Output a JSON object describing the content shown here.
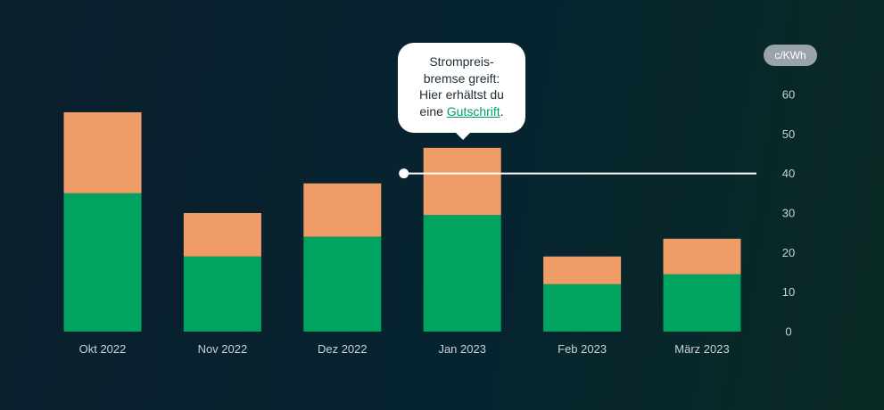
{
  "chart_data": {
    "type": "bar",
    "stacked": true,
    "categories": [
      "Okt 2022",
      "Nov 2022",
      "Dez 2022",
      "Jan 2023",
      "Feb 2023",
      "März 2023"
    ],
    "series": [
      {
        "color": "#00a360",
        "values": [
          35,
          19,
          24,
          29.5,
          12,
          14.5
        ]
      },
      {
        "color": "#f09c66",
        "values": [
          20.5,
          11,
          13.5,
          17,
          7,
          9
        ]
      }
    ],
    "ylim": [
      0,
      60
    ],
    "yticks": [
      0,
      10,
      20,
      30,
      40,
      50,
      60
    ],
    "y_axis_position": "right",
    "unit_label": "c/KWh",
    "reference_line": {
      "value": 40,
      "color": "#ffffff",
      "start_category": "Jan 2023"
    },
    "annotation": {
      "lines": [
        "Strompreis-",
        "bremse greift:",
        "Hier erhältst du"
      ],
      "last_line_prefix": "eine ",
      "link_text": "Gutschrift",
      "last_line_suffix": "."
    },
    "grid": false,
    "legend": "none"
  }
}
